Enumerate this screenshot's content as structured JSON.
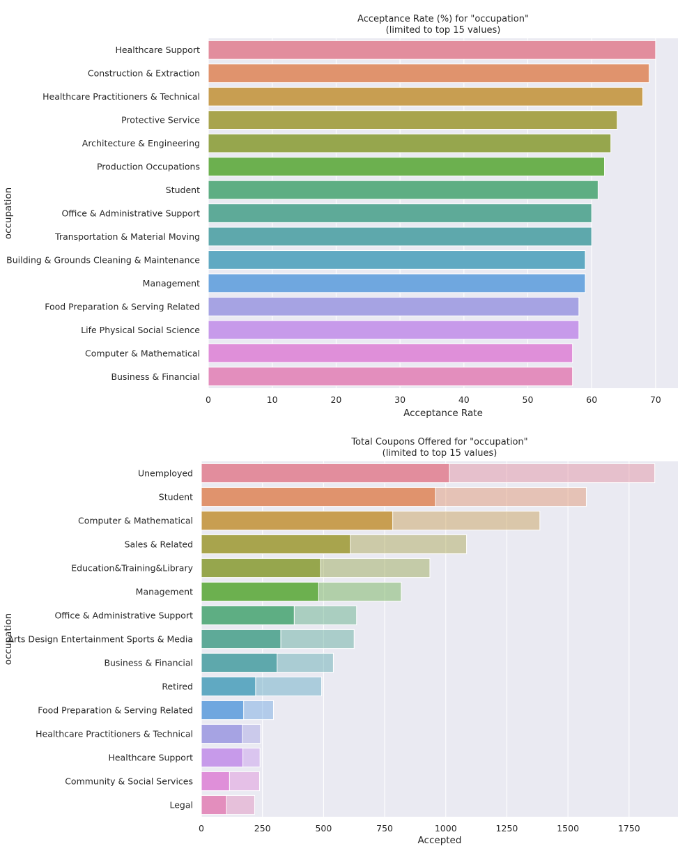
{
  "chart_data": [
    {
      "type": "bar",
      "orientation": "horizontal",
      "title": "Acceptance Rate (%) for \"occupation\"",
      "subtitle": "(limited to top 15 values)",
      "xlabel": "Acceptance Rate",
      "ylabel": "occupation",
      "xlim": [
        0,
        73.5
      ],
      "xticks": [
        "0",
        "10",
        "20",
        "30",
        "40",
        "50",
        "60",
        "70"
      ],
      "xtick_values": [
        0,
        10,
        20,
        30,
        40,
        50,
        60,
        70
      ],
      "grid": true,
      "categories": [
        "Healthcare Support",
        "Construction & Extraction",
        "Healthcare Practitioners & Technical",
        "Protective Service",
        "Architecture & Engineering",
        "Production Occupations",
        "Student",
        "Office & Administrative Support",
        "Transportation & Material Moving",
        "Building & Grounds Cleaning & Maintenance",
        "Management",
        "Food Preparation & Serving Related",
        "Life Physical Social Science",
        "Computer & Mathematical",
        "Business & Financial"
      ],
      "values": [
        70,
        69,
        68,
        64,
        63,
        62,
        61,
        60,
        60,
        59,
        59,
        58,
        58,
        57,
        57
      ]
    },
    {
      "type": "bar",
      "orientation": "horizontal",
      "stacked_overlay": true,
      "title": "Total Coupons Offered for \"occupation\"",
      "subtitle": "(limited to top 15 values)",
      "xlabel": "Accepted",
      "ylabel": "occupation",
      "xlim": [
        0,
        1950
      ],
      "xticks": [
        "0",
        "250",
        "500",
        "750",
        "1000",
        "1250",
        "1500",
        "1750"
      ],
      "xtick_values": [
        0,
        250,
        500,
        750,
        1000,
        1250,
        1500,
        1750
      ],
      "grid": true,
      "categories": [
        "Unemployed",
        "Student",
        "Computer & Mathematical",
        "Sales & Related",
        "Education&Training&Library",
        "Management",
        "Office & Administrative Support",
        "Arts Design Entertainment Sports & Media",
        "Business & Financial",
        "Retired",
        "Food Preparation & Serving Related",
        "Healthcare Practitioners & Technical",
        "Healthcare Support",
        "Community & Social Services",
        "Legal"
      ],
      "series": [
        {
          "values": [
            1015,
            958,
            783,
            610,
            488,
            480,
            380,
            325,
            310,
            222,
            173,
            168,
            170,
            115,
            103
          ]
        },
        {
          "values": [
            1855,
            1575,
            1385,
            1085,
            935,
            818,
            635,
            625,
            540,
            492,
            295,
            242,
            240,
            238,
            218
          ]
        }
      ]
    }
  ],
  "colors": {
    "background": "#eaeaf2",
    "grid": "#ffffff",
    "palette": [
      "#e28d9d",
      "#e0936d",
      "#c89e51",
      "#a8a44d",
      "#96a64d",
      "#6cb04f",
      "#5eae83",
      "#5eaa98",
      "#5ea8ac",
      "#60a9c2",
      "#6fa7df",
      "#a6a3e3",
      "#c79aea",
      "#df8fd9",
      "#e38ebd"
    ]
  }
}
